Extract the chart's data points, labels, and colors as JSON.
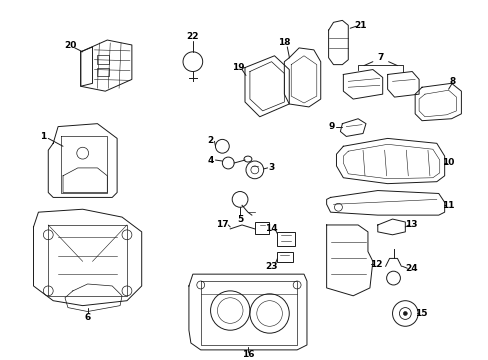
{
  "bg_color": "#ffffff",
  "line_color": "#1a1a1a",
  "parts_layout": {
    "fig_w": 4.89,
    "fig_h": 3.6,
    "dpi": 100,
    "xlim": [
      0,
      489
    ],
    "ylim": [
      0,
      360
    ]
  }
}
